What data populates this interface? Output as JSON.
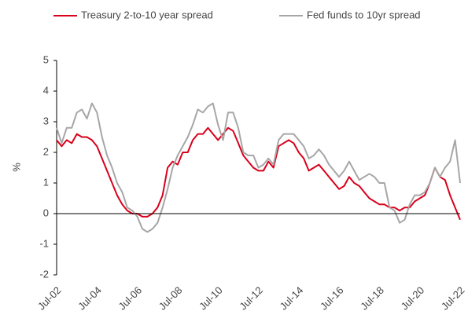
{
  "chart_data": {
    "type": "line",
    "x": [
      "Jul-02",
      "Oct-02",
      "Jan-03",
      "Apr-03",
      "Jul-03",
      "Oct-03",
      "Jan-04",
      "Apr-04",
      "Jul-04",
      "Oct-04",
      "Jan-05",
      "Apr-05",
      "Jul-05",
      "Oct-05",
      "Jan-06",
      "Apr-06",
      "Jul-06",
      "Oct-06",
      "Jan-07",
      "Apr-07",
      "Jul-07",
      "Oct-07",
      "Jan-08",
      "Apr-08",
      "Jul-08",
      "Oct-08",
      "Jan-09",
      "Apr-09",
      "Jul-09",
      "Oct-09",
      "Jan-10",
      "Apr-10",
      "Jul-10",
      "Oct-10",
      "Jan-11",
      "Apr-11",
      "Jul-11",
      "Oct-11",
      "Jan-12",
      "Apr-12",
      "Jul-12",
      "Oct-12",
      "Jan-13",
      "Apr-13",
      "Jul-13",
      "Oct-13",
      "Jan-14",
      "Apr-14",
      "Jul-14",
      "Oct-14",
      "Jan-15",
      "Apr-15",
      "Jul-15",
      "Oct-15",
      "Jan-16",
      "Apr-16",
      "Jul-16",
      "Oct-16",
      "Jan-17",
      "Apr-17",
      "Jul-17",
      "Oct-17",
      "Jan-18",
      "Apr-18",
      "Jul-18",
      "Oct-18",
      "Jan-19",
      "Apr-19",
      "Jul-19",
      "Oct-19",
      "Jan-20",
      "Apr-20",
      "Jul-20",
      "Oct-20",
      "Jan-21",
      "Apr-21",
      "Jul-21",
      "Oct-21",
      "Jan-22",
      "Apr-22",
      "Jul-22"
    ],
    "series": [
      {
        "name": "Treasury 2-to-10 year spread",
        "color": "#d9001b",
        "values": [
          2.4,
          2.2,
          2.4,
          2.3,
          2.6,
          2.5,
          2.5,
          2.4,
          2.2,
          1.8,
          1.4,
          1.0,
          0.6,
          0.3,
          0.1,
          0.0,
          0.0,
          -0.1,
          -0.1,
          0.0,
          0.2,
          0.6,
          1.5,
          1.7,
          1.6,
          2.0,
          2.0,
          2.4,
          2.6,
          2.6,
          2.8,
          2.6,
          2.4,
          2.6,
          2.8,
          2.7,
          2.3,
          1.9,
          1.7,
          1.5,
          1.4,
          1.4,
          1.7,
          1.5,
          2.2,
          2.3,
          2.4,
          2.3,
          2.0,
          1.8,
          1.4,
          1.5,
          1.6,
          1.4,
          1.2,
          1.0,
          0.8,
          0.9,
          1.2,
          1.0,
          0.9,
          0.7,
          0.5,
          0.4,
          0.3,
          0.3,
          0.2,
          0.2,
          0.1,
          0.2,
          0.2,
          0.4,
          0.5,
          0.6,
          1.0,
          1.5,
          1.2,
          1.1,
          0.6,
          0.2,
          -0.2
        ]
      },
      {
        "name": "Fed funds to 10yr spread",
        "color": "#a6a6a6",
        "values": [
          2.8,
          2.3,
          2.8,
          2.8,
          3.3,
          3.4,
          3.1,
          3.6,
          3.3,
          2.5,
          1.9,
          1.5,
          1.0,
          0.7,
          0.2,
          0.1,
          -0.1,
          -0.5,
          -0.6,
          -0.5,
          -0.3,
          0.2,
          0.8,
          1.5,
          1.9,
          2.2,
          2.5,
          2.9,
          3.4,
          3.3,
          3.5,
          3.6,
          2.9,
          2.4,
          3.3,
          3.3,
          2.8,
          2.0,
          1.9,
          1.9,
          1.5,
          1.6,
          1.8,
          1.6,
          2.4,
          2.6,
          2.6,
          2.6,
          2.4,
          2.2,
          1.8,
          1.9,
          2.1,
          1.9,
          1.6,
          1.4,
          1.2,
          1.4,
          1.7,
          1.4,
          1.1,
          1.2,
          1.3,
          1.2,
          1.0,
          1.0,
          0.2,
          0.1,
          -0.3,
          -0.2,
          0.3,
          0.6,
          0.6,
          0.7,
          1.0,
          1.5,
          1.2,
          1.5,
          1.7,
          2.4,
          1.0
        ]
      }
    ],
    "xticks": [
      "Jul-02",
      "Jul-04",
      "Jul-06",
      "Jul-08",
      "Jul-10",
      "Jul-12",
      "Jul-14",
      "Jul-16",
      "Jul-18",
      "Jul-20",
      "Jul-22"
    ],
    "ylabel": "%",
    "ylim": [
      -2,
      5
    ],
    "yticks": [
      -2,
      -1,
      0,
      1,
      2,
      3,
      4,
      5
    ],
    "legend": "top"
  }
}
